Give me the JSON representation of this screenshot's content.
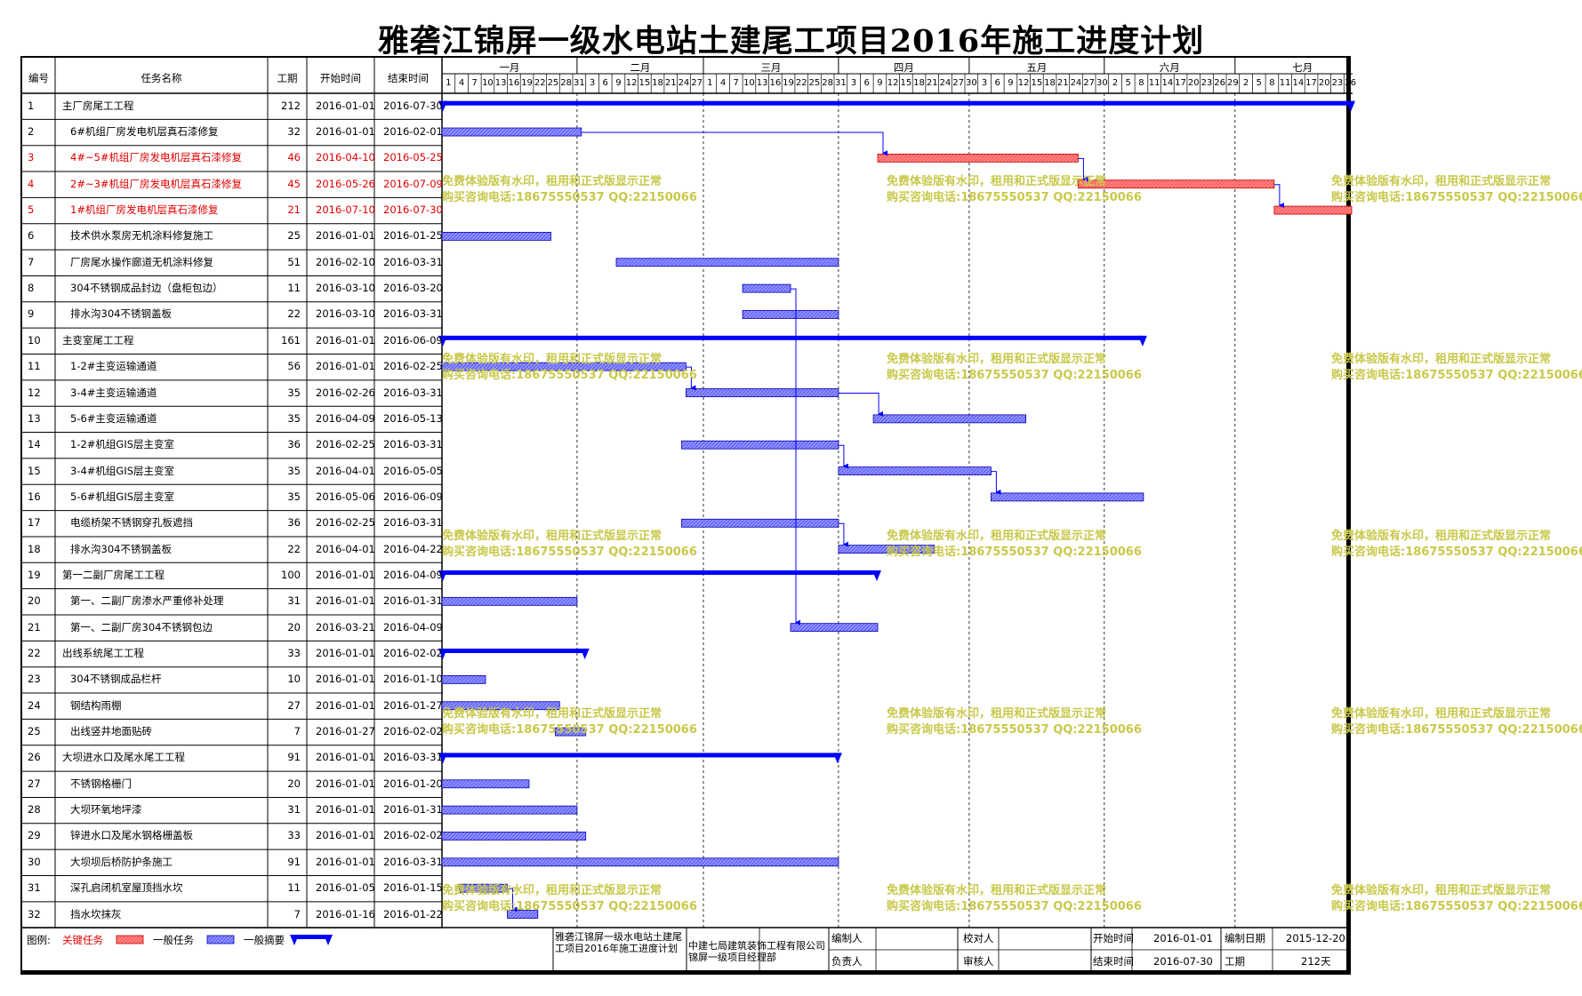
{
  "title": "雅砻江锦屏一级水电站土建尾工项目2016年施工进度计划",
  "headers": {
    "id": "编号",
    "name": "任务名称",
    "duration": "工期",
    "start": "开始时间",
    "end": "结束时间"
  },
  "months": [
    "一月",
    "二月",
    "三月",
    "四月",
    "五月",
    "六月",
    "七月"
  ],
  "day_ticks": [
    [
      "1",
      "4",
      "7",
      "10",
      "13",
      "16",
      "19",
      "22",
      "25",
      "28",
      "31"
    ],
    [
      "3",
      "6",
      "9",
      "12",
      "15",
      "18",
      "21",
      "24",
      "27"
    ],
    [
      "1",
      "4",
      "7",
      "10",
      "13",
      "16",
      "19",
      "22",
      "25",
      "28",
      "31"
    ],
    [
      "3",
      "6",
      "9",
      "12",
      "15",
      "18",
      "21",
      "24",
      "27",
      "30"
    ],
    [
      "3",
      "6",
      "9",
      "12",
      "15",
      "18",
      "21",
      "24",
      "27",
      "30"
    ],
    [
      "2",
      "5",
      "8",
      "11",
      "14",
      "17",
      "20",
      "23",
      "26",
      "29"
    ],
    [
      "2",
      "5",
      "8",
      "11",
      "14",
      "17",
      "20",
      "23",
      "26"
    ]
  ],
  "tasks": [
    {
      "id": "1",
      "name": "主厂房尾工工程",
      "dur": "212",
      "start": "2016-01-01",
      "end": "2016-07-30",
      "type": "summary",
      "indent": 0
    },
    {
      "id": "2",
      "name": "6#机组厂房发电机层真石漆修复",
      "dur": "32",
      "start": "2016-01-01",
      "end": "2016-02-01",
      "type": "normal",
      "indent": 1
    },
    {
      "id": "3",
      "name": "4#~5#机组厂房发电机层真石漆修复",
      "dur": "46",
      "start": "2016-04-10",
      "end": "2016-05-25",
      "type": "critical",
      "indent": 1
    },
    {
      "id": "4",
      "name": "2#~3#机组厂房发电机层真石漆修复",
      "dur": "45",
      "start": "2016-05-26",
      "end": "2016-07-09",
      "type": "critical",
      "indent": 1
    },
    {
      "id": "5",
      "name": "1#机组厂房发电机层真石漆修复",
      "dur": "21",
      "start": "2016-07-10",
      "end": "2016-07-30",
      "type": "critical",
      "indent": 1
    },
    {
      "id": "6",
      "name": "技术供水泵房无机涂料修复施工",
      "dur": "25",
      "start": "2016-01-01",
      "end": "2016-01-25",
      "type": "normal",
      "indent": 1
    },
    {
      "id": "7",
      "name": "厂房尾水操作廊道无机涂料修复",
      "dur": "51",
      "start": "2016-02-10",
      "end": "2016-03-31",
      "type": "normal",
      "indent": 1
    },
    {
      "id": "8",
      "name": "304不锈钢成品封边（盘柜包边）",
      "dur": "11",
      "start": "2016-03-10",
      "end": "2016-03-20",
      "type": "normal",
      "indent": 1
    },
    {
      "id": "9",
      "name": "排水沟304不锈钢盖板",
      "dur": "22",
      "start": "2016-03-10",
      "end": "2016-03-31",
      "type": "normal",
      "indent": 1
    },
    {
      "id": "10",
      "name": "主变室尾工工程",
      "dur": "161",
      "start": "2016-01-01",
      "end": "2016-06-09",
      "type": "summary",
      "indent": 0
    },
    {
      "id": "11",
      "name": "1-2#主变运输通道",
      "dur": "56",
      "start": "2016-01-01",
      "end": "2016-02-25",
      "type": "normal",
      "indent": 1
    },
    {
      "id": "12",
      "name": "3-4#主变运输通道",
      "dur": "35",
      "start": "2016-02-26",
      "end": "2016-03-31",
      "type": "normal",
      "indent": 1
    },
    {
      "id": "13",
      "name": "5-6#主变运输通道",
      "dur": "35",
      "start": "2016-04-09",
      "end": "2016-05-13",
      "type": "normal",
      "indent": 1
    },
    {
      "id": "14",
      "name": "1-2#机组GIS层主变室",
      "dur": "36",
      "start": "2016-02-25",
      "end": "2016-03-31",
      "type": "normal",
      "indent": 1
    },
    {
      "id": "15",
      "name": "3-4#机组GIS层主变室",
      "dur": "35",
      "start": "2016-04-01",
      "end": "2016-05-05",
      "type": "normal",
      "indent": 1
    },
    {
      "id": "16",
      "name": "5-6#机组GIS层主变室",
      "dur": "35",
      "start": "2016-05-06",
      "end": "2016-06-09",
      "type": "normal",
      "indent": 1
    },
    {
      "id": "17",
      "name": "电缆桥架不锈钢穿孔板遮挡",
      "dur": "36",
      "start": "2016-02-25",
      "end": "2016-03-31",
      "type": "normal",
      "indent": 1
    },
    {
      "id": "18",
      "name": "排水沟304不锈钢盖板",
      "dur": "22",
      "start": "2016-04-01",
      "end": "2016-04-22",
      "type": "normal",
      "indent": 1
    },
    {
      "id": "19",
      "name": "第一二副厂房尾工工程",
      "dur": "100",
      "start": "2016-01-01",
      "end": "2016-04-09",
      "type": "summary",
      "indent": 0
    },
    {
      "id": "20",
      "name": "第一、二副厂房渗水严重修补处理",
      "dur": "31",
      "start": "2016-01-01",
      "end": "2016-01-31",
      "type": "normal",
      "indent": 1
    },
    {
      "id": "21",
      "name": "第一、二副厂房304不锈钢包边",
      "dur": "20",
      "start": "2016-03-21",
      "end": "2016-04-09",
      "type": "normal",
      "indent": 1
    },
    {
      "id": "22",
      "name": "出线系统尾工工程",
      "dur": "33",
      "start": "2016-01-01",
      "end": "2016-02-02",
      "type": "summary",
      "indent": 0
    },
    {
      "id": "23",
      "name": "304不锈钢成品栏杆",
      "dur": "10",
      "start": "2016-01-01",
      "end": "2016-01-10",
      "type": "normal",
      "indent": 1
    },
    {
      "id": "24",
      "name": "钢结构雨棚",
      "dur": "27",
      "start": "2016-01-01",
      "end": "2016-01-27",
      "type": "normal",
      "indent": 1
    },
    {
      "id": "25",
      "name": "出线竖井地面贴砖",
      "dur": "7",
      "start": "2016-01-27",
      "end": "2016-02-02",
      "type": "normal",
      "indent": 1
    },
    {
      "id": "26",
      "name": "大坝进水口及尾水尾工工程",
      "dur": "91",
      "start": "2016-01-01",
      "end": "2016-03-31",
      "type": "summary",
      "indent": 0
    },
    {
      "id": "27",
      "name": "不锈钢格栅门",
      "dur": "20",
      "start": "2016-01-01",
      "end": "2016-01-20",
      "type": "normal",
      "indent": 1
    },
    {
      "id": "28",
      "name": "大坝环氧地坪漆",
      "dur": "31",
      "start": "2016-01-01",
      "end": "2016-01-31",
      "type": "normal",
      "indent": 1
    },
    {
      "id": "29",
      "name": "锌进水口及尾水钢格栅盖板",
      "dur": "33",
      "start": "2016-01-01",
      "end": "2016-02-02",
      "type": "normal",
      "indent": 1
    },
    {
      "id": "30",
      "name": "大坝坝后桥防护条施工",
      "dur": "91",
      "start": "2016-01-01",
      "end": "2016-03-31",
      "type": "normal",
      "indent": 1
    },
    {
      "id": "31",
      "name": "深孔启闭机室屋顶挡水坎",
      "dur": "11",
      "start": "2016-01-05",
      "end": "2016-01-15",
      "type": "normal",
      "indent": 1
    },
    {
      "id": "32",
      "name": "挡水坎抹灰",
      "dur": "7",
      "start": "2016-01-16",
      "end": "2016-01-22",
      "type": "normal",
      "indent": 1
    }
  ],
  "links": [
    [
      2,
      3
    ],
    [
      3,
      4
    ],
    [
      4,
      5
    ],
    [
      8,
      21
    ],
    [
      11,
      12
    ],
    [
      12,
      13
    ],
    [
      14,
      15
    ],
    [
      15,
      16
    ],
    [
      17,
      18
    ],
    [
      31,
      32
    ]
  ],
  "legend": {
    "label": "图例:",
    "critical": "关键任务",
    "normal": "一般任务",
    "summary": "一般摘要"
  },
  "footer": {
    "project": "雅砻江锦屏一级水电站土建尾工项目2016年施工进度计划",
    "company": "中建七局建筑装饰工程有限公司锦屏一级项目经理部",
    "editor_label": "编制人",
    "reviewer_label": "校对人",
    "owner_label": "负责人",
    "auditor_label": "审核人",
    "start_label": "开始时间",
    "start_value": "2016-01-01",
    "end_label": "结束时间",
    "end_value": "2016-07-30",
    "date_label": "编制日期",
    "date_value": "2015-12-20",
    "dur_label": "工期",
    "dur_value": "212天"
  },
  "watermark": {
    "line1": "免费体验版有水印，租用和正式版显示正常",
    "line2": "购买咨询电话:18675550537 QQ:22150066"
  },
  "colors": {
    "critical": "#ff6060",
    "normal": "#6a6aff",
    "summary": "#0000ff",
    "link": "#0000ff",
    "critical_text": "#e00000",
    "watermark": "#c8c84a"
  },
  "chart_data": {
    "type": "gantt",
    "title": "雅砻江锦屏一级水电站土建尾工项目2016年施工进度计划",
    "x_axis": "2016-01-01 to 2016-07-31",
    "series": [
      "关键任务",
      "一般任务",
      "一般摘要"
    ]
  }
}
